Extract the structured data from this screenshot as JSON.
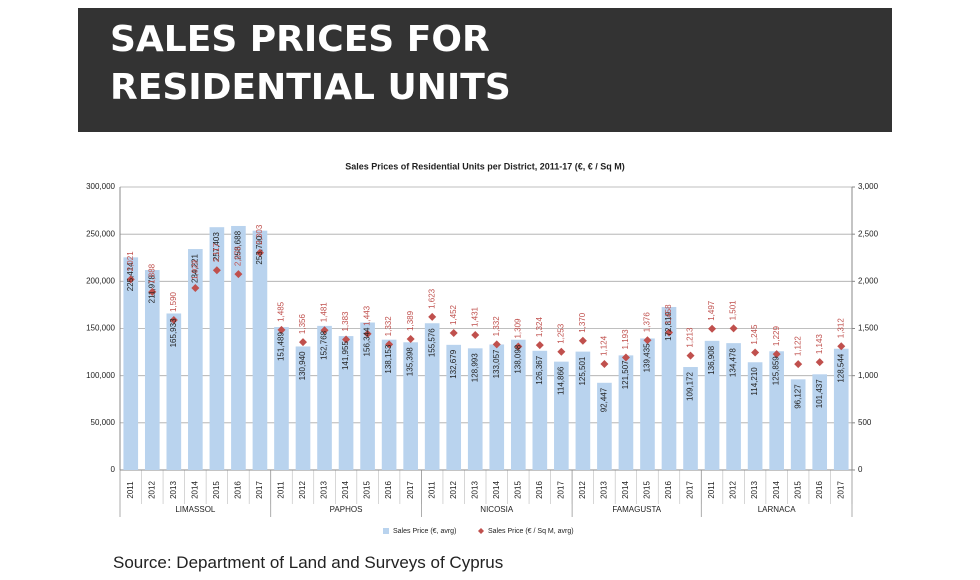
{
  "header": {
    "title": "SALES PRICES FOR RESIDENTIAL UNITS"
  },
  "chart_data": {
    "type": "bar",
    "title": "Sales Prices of Residential Units per District, 2011-17 (€, € / Sq M)",
    "groups": [
      {
        "name": "LIMASSOL",
        "categories": [
          "2011",
          "2012",
          "2013",
          "2014",
          "2015",
          "2016",
          "2017"
        ]
      },
      {
        "name": "PAPHOS",
        "categories": [
          "2011",
          "2012",
          "2013",
          "2014",
          "2015",
          "2016",
          "2017"
        ]
      },
      {
        "name": "NICOSIA",
        "categories": [
          "2011",
          "2012",
          "2013",
          "2014",
          "2015",
          "2016",
          "2017"
        ]
      },
      {
        "name": "FAMAGUSTA",
        "categories": [
          "2012",
          "2013",
          "2014",
          "2015",
          "2016",
          "2017"
        ]
      },
      {
        "name": "LARNACA",
        "categories": [
          "2011",
          "2012",
          "2013",
          "2014",
          "2015",
          "2016",
          "2017"
        ]
      }
    ],
    "series": [
      {
        "name": "Sales Price (€, avrg)",
        "color": "#b9d3ee",
        "values": [
          225414,
          211978,
          165933,
          234221,
          257403,
          258688,
          253700,
          151489,
          130940,
          152768,
          141955,
          156344,
          138153,
          135398,
          155576,
          132679,
          128993,
          133057,
          138098,
          126367,
          114866,
          125501,
          92447,
          121507,
          139435,
          172819,
          109172,
          136908,
          134478,
          114210,
          125859,
          96127,
          101437,
          128544
        ],
        "value_labels": [
          "225,414",
          "211,978",
          "165,933",
          "234,221",
          "257,403",
          "258,688",
          "253,700",
          "151,489",
          "130,940",
          "152,768",
          "141,955",
          "156,344",
          "138,153",
          "135,398",
          "155,576",
          "132,679",
          "128,993",
          "133,057",
          "138,098",
          "126,367",
          "114,866",
          "125,501",
          "92,447",
          "121,507",
          "139,435",
          "172,819",
          "109,172",
          "136,908",
          "134,478",
          "114,210",
          "125,859",
          "96,127",
          "101,437",
          "128,544"
        ]
      },
      {
        "name": "Sales Price (€ / Sq M, avrg)",
        "color": "#c0504d",
        "axis": "y2",
        "values": [
          2021,
          1888,
          1590,
          1929,
          2117,
          2076,
          2303,
          1485,
          1356,
          1481,
          1383,
          1443,
          1332,
          1389,
          1623,
          1452,
          1431,
          1332,
          1309,
          1324,
          1253,
          1370,
          1124,
          1193,
          1376,
          1458,
          1213,
          1497,
          1501,
          1245,
          1229,
          1122,
          1143,
          1312
        ],
        "value_labels": [
          "2,021",
          "1,888",
          "1,590",
          "1,929",
          "2,117",
          "2,076",
          "2,303",
          "1,485",
          "1,356",
          "1,481",
          "1,383",
          "1,443",
          "1,332",
          "1,389",
          "1,623",
          "1,452",
          "1,431",
          "1,332",
          "1,309",
          "1,324",
          "1,253",
          "1,370",
          "1,124",
          "1,193",
          "1,376",
          "1,458",
          "1,213",
          "1,497",
          "1,501",
          "1,245",
          "1,229",
          "1,122",
          "1,143",
          "1,312"
        ]
      }
    ],
    "ylim": [
      0,
      300000
    ],
    "yticks": [
      0,
      {
        "value": 50000,
        "label": "50,000"
      },
      {
        "value": 100000,
        "label": "100,000"
      },
      {
        "value": 150000,
        "label": "150,000"
      },
      {
        "value": 200000,
        "label": "200,000"
      },
      {
        "value": 250000,
        "label": "250,000"
      },
      {
        "value": 300000,
        "label": "300,000"
      }
    ],
    "y2lim": [
      0,
      3000
    ],
    "y2ticks": [
      0,
      500,
      {
        "value": 1000,
        "label": "1,000"
      },
      {
        "value": 1500,
        "label": "1,500"
      },
      {
        "value": 2000,
        "label": "2,000"
      },
      {
        "value": 2500,
        "label": "2,500"
      },
      {
        "value": 3000,
        "label": "3,000"
      }
    ],
    "grid": true
  },
  "source": "Source: Department of Land and Surveys of Cyprus"
}
